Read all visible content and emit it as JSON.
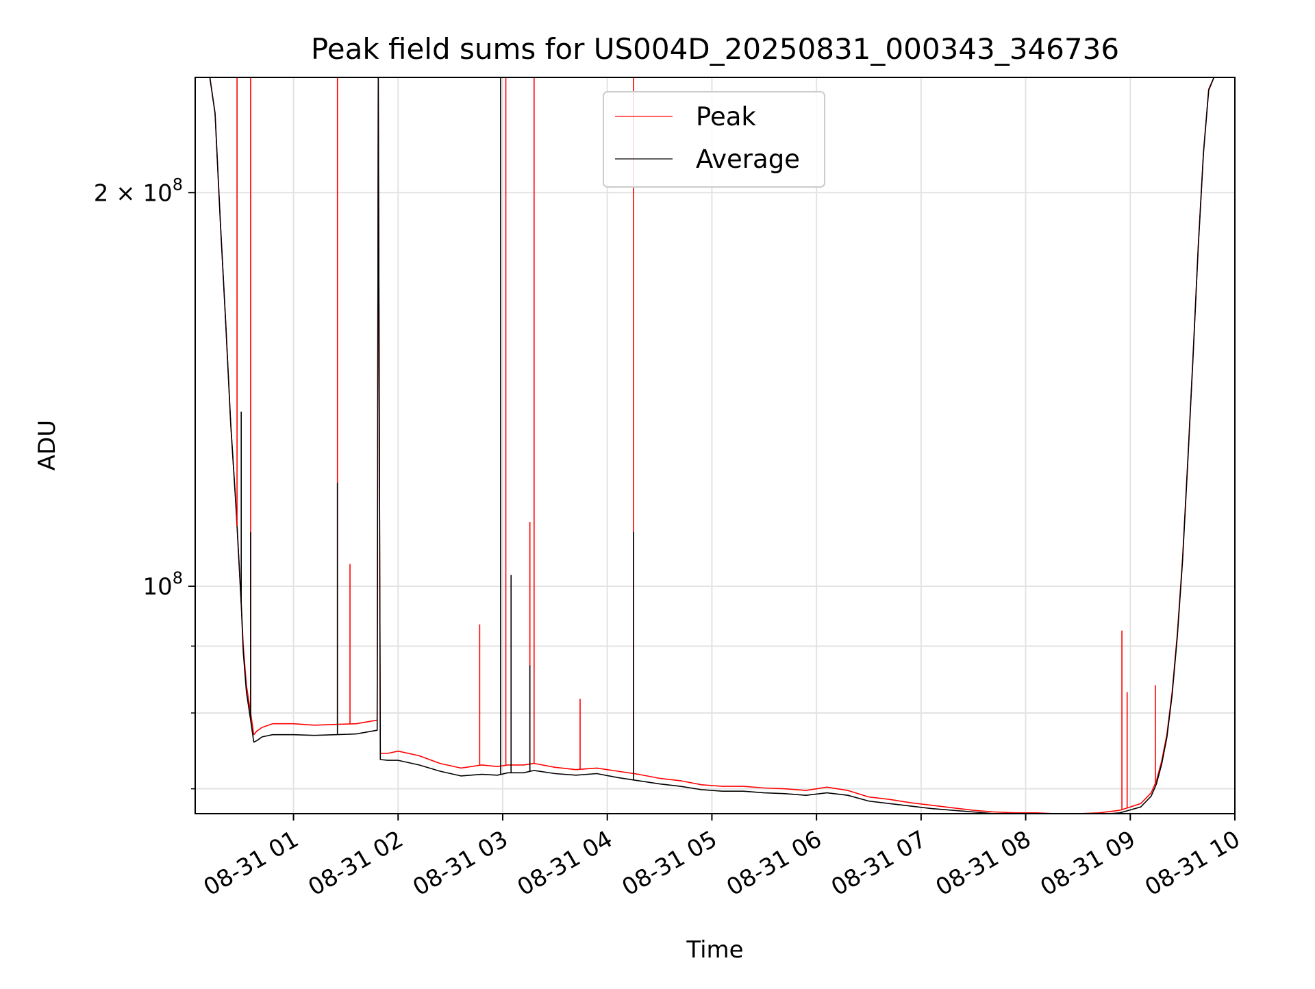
{
  "chart_data": {
    "type": "line",
    "title": "Peak field sums for US004D_20250831_000343_346736",
    "xlabel": "Time",
    "ylabel": "ADU",
    "x_unit": "hours after 2025-08-31 00:00",
    "xlim": [
      0.06,
      10.0
    ],
    "ylim": [
      67000000,
      245000000
    ],
    "y_scale": "log",
    "grid": true,
    "legend_position": "upper-center",
    "x_ticks": [
      {
        "value": 1,
        "label": "08-31 01"
      },
      {
        "value": 2,
        "label": "08-31 02"
      },
      {
        "value": 3,
        "label": "08-31 03"
      },
      {
        "value": 4,
        "label": "08-31 04"
      },
      {
        "value": 5,
        "label": "08-31 05"
      },
      {
        "value": 6,
        "label": "08-31 06"
      },
      {
        "value": 7,
        "label": "08-31 07"
      },
      {
        "value": 8,
        "label": "08-31 08"
      },
      {
        "value": 9,
        "label": "08-31 09"
      },
      {
        "value": 10,
        "label": "08-31 10"
      }
    ],
    "y_major_ticks": [
      {
        "value": 100000000,
        "base": "10",
        "exp": "8"
      },
      {
        "value": 200000000,
        "mantissa": "2",
        "base": "10",
        "exp": "8"
      }
    ],
    "y_minor_ticks": [
      70000000,
      80000000,
      90000000
    ],
    "series": [
      {
        "name": "Peak",
        "color": "#ff0000",
        "x": [
          0.06,
          0.2,
          0.25,
          0.3,
          0.35,
          0.4,
          0.45,
          0.5,
          0.52,
          0.55,
          0.6,
          0.62,
          0.65,
          0.7,
          0.8,
          1.0,
          1.2,
          1.4,
          1.6,
          1.8,
          1.81,
          1.83,
          1.9,
          2.0,
          2.2,
          2.4,
          2.6,
          2.8,
          2.95,
          3.05,
          3.1,
          3.2,
          3.3,
          3.5,
          3.7,
          3.9,
          4.1,
          4.3,
          4.5,
          4.7,
          4.9,
          5.1,
          5.3,
          5.5,
          5.7,
          5.9,
          6.1,
          6.3,
          6.5,
          6.7,
          6.9,
          7.1,
          7.3,
          7.5,
          7.7,
          7.9,
          8.1,
          8.3,
          8.5,
          8.7,
          8.9,
          9.1,
          9.2,
          9.25,
          9.3,
          9.35,
          9.4,
          9.45,
          9.5,
          9.55,
          9.6,
          9.65,
          9.7,
          9.75,
          9.8
        ],
        "y": [
          245000000,
          245000000,
          230000000,
          190000000,
          160000000,
          133000000,
          115000000,
          97000000,
          90000000,
          84000000,
          79000000,
          77000000,
          77500000,
          78000000,
          78500000,
          78500000,
          78300000,
          78400000,
          78500000,
          79000000,
          245000000,
          74500000,
          74500000,
          74800000,
          74200000,
          73200000,
          72600000,
          73000000,
          72800000,
          73000000,
          73000000,
          73000000,
          73200000,
          72700000,
          72400000,
          72600000,
          72200000,
          71800000,
          71300000,
          71000000,
          70500000,
          70300000,
          70300000,
          70100000,
          70000000,
          69800000,
          70200000,
          69800000,
          69000000,
          68700000,
          68300000,
          68000000,
          67700000,
          67400000,
          67200000,
          67100000,
          67100000,
          67000000,
          67000000,
          67100000,
          67400000,
          68200000,
          69500000,
          71000000,
          73500000,
          77000000,
          83000000,
          92000000,
          105000000,
          125000000,
          150000000,
          182000000,
          215000000,
          240000000,
          245000000
        ]
      },
      {
        "name": "Average",
        "color": "#000000",
        "x": [
          0.06,
          0.2,
          0.25,
          0.3,
          0.35,
          0.4,
          0.45,
          0.5,
          0.52,
          0.55,
          0.6,
          0.62,
          0.65,
          0.7,
          0.8,
          1.0,
          1.2,
          1.4,
          1.6,
          1.8,
          1.81,
          1.83,
          1.9,
          2.0,
          2.2,
          2.4,
          2.6,
          2.8,
          2.95,
          3.05,
          3.1,
          3.2,
          3.3,
          3.5,
          3.7,
          3.9,
          4.1,
          4.3,
          4.5,
          4.7,
          4.9,
          5.1,
          5.3,
          5.5,
          5.7,
          5.9,
          6.1,
          6.3,
          6.5,
          6.7,
          6.9,
          7.1,
          7.3,
          7.5,
          7.7,
          7.9,
          8.1,
          8.3,
          8.5,
          8.7,
          8.9,
          9.1,
          9.2,
          9.25,
          9.3,
          9.35,
          9.4,
          9.45,
          9.5,
          9.55,
          9.6,
          9.65,
          9.7,
          9.75,
          9.8
        ],
        "y": [
          245000000,
          245000000,
          230000000,
          190000000,
          160000000,
          133000000,
          115000000,
          97000000,
          89000000,
          83000000,
          78000000,
          76000000,
          76200000,
          76700000,
          77000000,
          77000000,
          76900000,
          77000000,
          77100000,
          77600000,
          245000000,
          73700000,
          73600000,
          73600000,
          73000000,
          72200000,
          71600000,
          71800000,
          71700000,
          72000000,
          72000000,
          72000000,
          72300000,
          71900000,
          71700000,
          71900000,
          71400000,
          71000000,
          70600000,
          70300000,
          69900000,
          69700000,
          69700000,
          69500000,
          69400000,
          69200000,
          69500000,
          69200000,
          68500000,
          68200000,
          67900000,
          67600000,
          67400000,
          67200000,
          67000000,
          66900000,
          66900000,
          66800000,
          66800000,
          66900000,
          67100000,
          67800000,
          69100000,
          70600000,
          73100000,
          76600000,
          82600000,
          91500000,
          104500000,
          124500000,
          149500000,
          181500000,
          214500000,
          239500000,
          245000000
        ]
      }
    ],
    "spikes": [
      {
        "series": "Peak",
        "x": 0.46,
        "y": 245000000
      },
      {
        "series": "Peak",
        "x": 0.59,
        "y": 245000000
      },
      {
        "series": "Peak",
        "x": 1.42,
        "y": 245000000
      },
      {
        "series": "Peak",
        "x": 1.54,
        "y": 104000000
      },
      {
        "series": "Peak",
        "x": 2.78,
        "y": 93500000
      },
      {
        "series": "Peak",
        "x": 3.03,
        "y": 245000000
      },
      {
        "series": "Peak",
        "x": 3.26,
        "y": 112000000
      },
      {
        "series": "Peak",
        "x": 3.3,
        "y": 245000000
      },
      {
        "series": "Peak",
        "x": 3.74,
        "y": 82000000
      },
      {
        "series": "Peak",
        "x": 4.25,
        "y": 245000000
      },
      {
        "series": "Peak",
        "x": 8.92,
        "y": 92500000
      },
      {
        "series": "Peak",
        "x": 8.97,
        "y": 83000000
      },
      {
        "series": "Peak",
        "x": 9.24,
        "y": 84000000
      },
      {
        "series": "Average",
        "x": 0.5,
        "y": 136000000
      },
      {
        "series": "Average",
        "x": 0.59,
        "y": 110000000
      },
      {
        "series": "Average",
        "x": 1.42,
        "y": 120000000
      },
      {
        "series": "Average",
        "x": 2.98,
        "y": 245000000
      },
      {
        "series": "Average",
        "x": 3.08,
        "y": 102000000
      },
      {
        "series": "Average",
        "x": 3.26,
        "y": 87000000
      },
      {
        "series": "Average",
        "x": 4.25,
        "y": 110000000
      }
    ]
  }
}
